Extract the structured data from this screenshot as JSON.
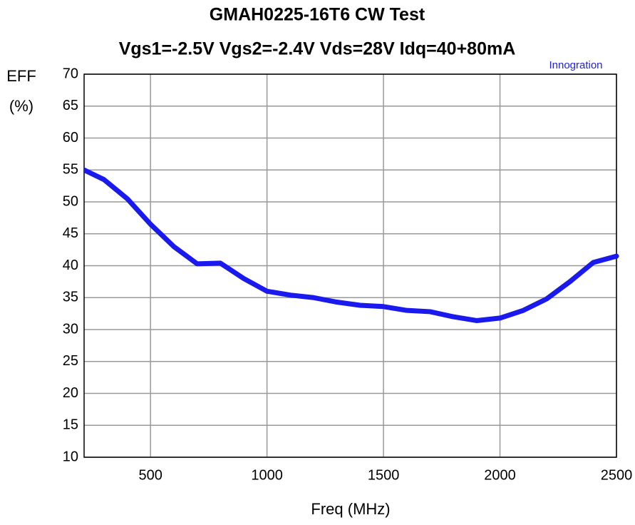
{
  "chart_data": {
    "type": "line",
    "title": [
      "GMAH0225-16T6  CW Test",
      "Vgs1=-2.5V Vgs2=-2.4V Vds=28V Idq=40+80mA"
    ],
    "annotation": "Innogration",
    "xlabel": "Freq (MHz)",
    "ylabel": [
      "EFF",
      "(%)"
    ],
    "x": [
      215,
      300,
      400,
      500,
      600,
      700,
      800,
      900,
      1000,
      1100,
      1200,
      1300,
      1400,
      1500,
      1600,
      1700,
      1800,
      1900,
      2000,
      2100,
      2200,
      2300,
      2400,
      2500
    ],
    "series": [
      {
        "name": "EFF",
        "color": "#1a1aee",
        "values": [
          55,
          53.5,
          50.5,
          46.5,
          43,
          40.3,
          40.4,
          38,
          36,
          35.4,
          35,
          34.3,
          33.8,
          33.6,
          33,
          32.8,
          32,
          31.4,
          31.8,
          33,
          34.8,
          37.5,
          40.5,
          41.5
        ]
      }
    ],
    "xlim": [
      215,
      2500
    ],
    "ylim": [
      10,
      70
    ],
    "xticks": [
      500,
      1000,
      1500,
      2000,
      2500
    ],
    "yticks": [
      10,
      15,
      20,
      25,
      30,
      35,
      40,
      45,
      50,
      55,
      60,
      65,
      70
    ],
    "grid": true
  }
}
